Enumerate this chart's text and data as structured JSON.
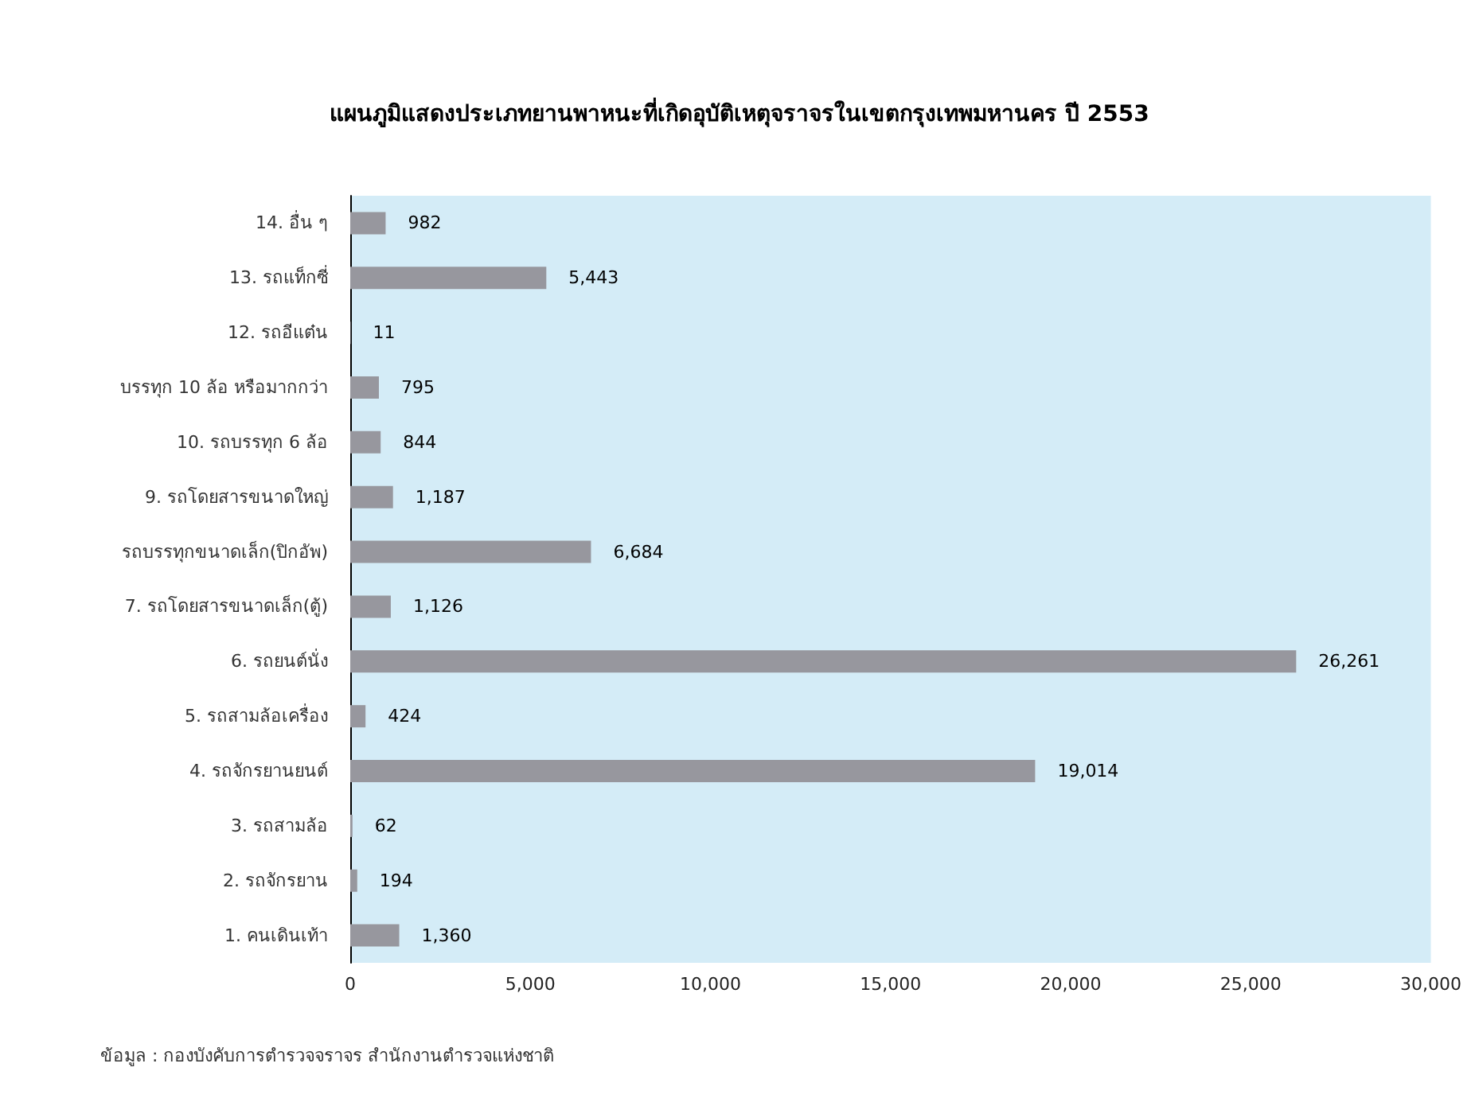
{
  "chart_data": {
    "type": "bar",
    "orientation": "horizontal",
    "title": "แผนภูมิแสดงประเภทยานพาหนะที่เกิดอุบัติเหตุจราจรในเขตกรุงเทพมหานคร ปี 2553",
    "categories": [
      "14. อื่น ๆ",
      "13. รถแท็กซี่",
      "12. รถอีแต๋น",
      "บรรทุก 10 ล้อ หรือมากกว่า",
      "10. รถบรรทุก 6 ล้อ",
      "9. รถโดยสารขนาดใหญ่",
      "รถบรรทุกขนาดเล็ก(ปิกอัพ)",
      "7. รถโดยสารขนาดเล็ก(ตู้)",
      "6. รถยนต์นั่ง",
      "5. รถสามล้อเครื่อง",
      "4. รถจักรยานยนต์",
      "3. รถสามล้อ",
      "2. รถจักรยาน",
      "1. คนเดินเท้า"
    ],
    "values": [
      982,
      5443,
      11,
      795,
      844,
      1187,
      6684,
      1126,
      26261,
      424,
      19014,
      62,
      194,
      1360
    ],
    "value_labels": [
      "982",
      "5,443",
      "11",
      "795",
      "844",
      "1,187",
      "6,684",
      "1,126",
      "26,261",
      "424",
      "19,014",
      "62",
      "194",
      "1,360"
    ],
    "color": "#97979e",
    "xlim": [
      0,
      30000
    ],
    "xticks": [
      0,
      {
        "value": 5000,
        "label": "5,000"
      },
      {
        "value": 10000,
        "label": "10,000"
      },
      {
        "value": 15000,
        "label": "15,000"
      },
      {
        "value": 20000,
        "label": "20,000"
      },
      {
        "value": 25000,
        "label": "25,000"
      },
      {
        "value": 30000,
        "label": "30,000"
      }
    ],
    "grid": false,
    "annotations": [
      "ข้อมูล : กองบังคับการตำรวจจราจร สำนักงานตำรวจแห่งชาติ"
    ]
  }
}
